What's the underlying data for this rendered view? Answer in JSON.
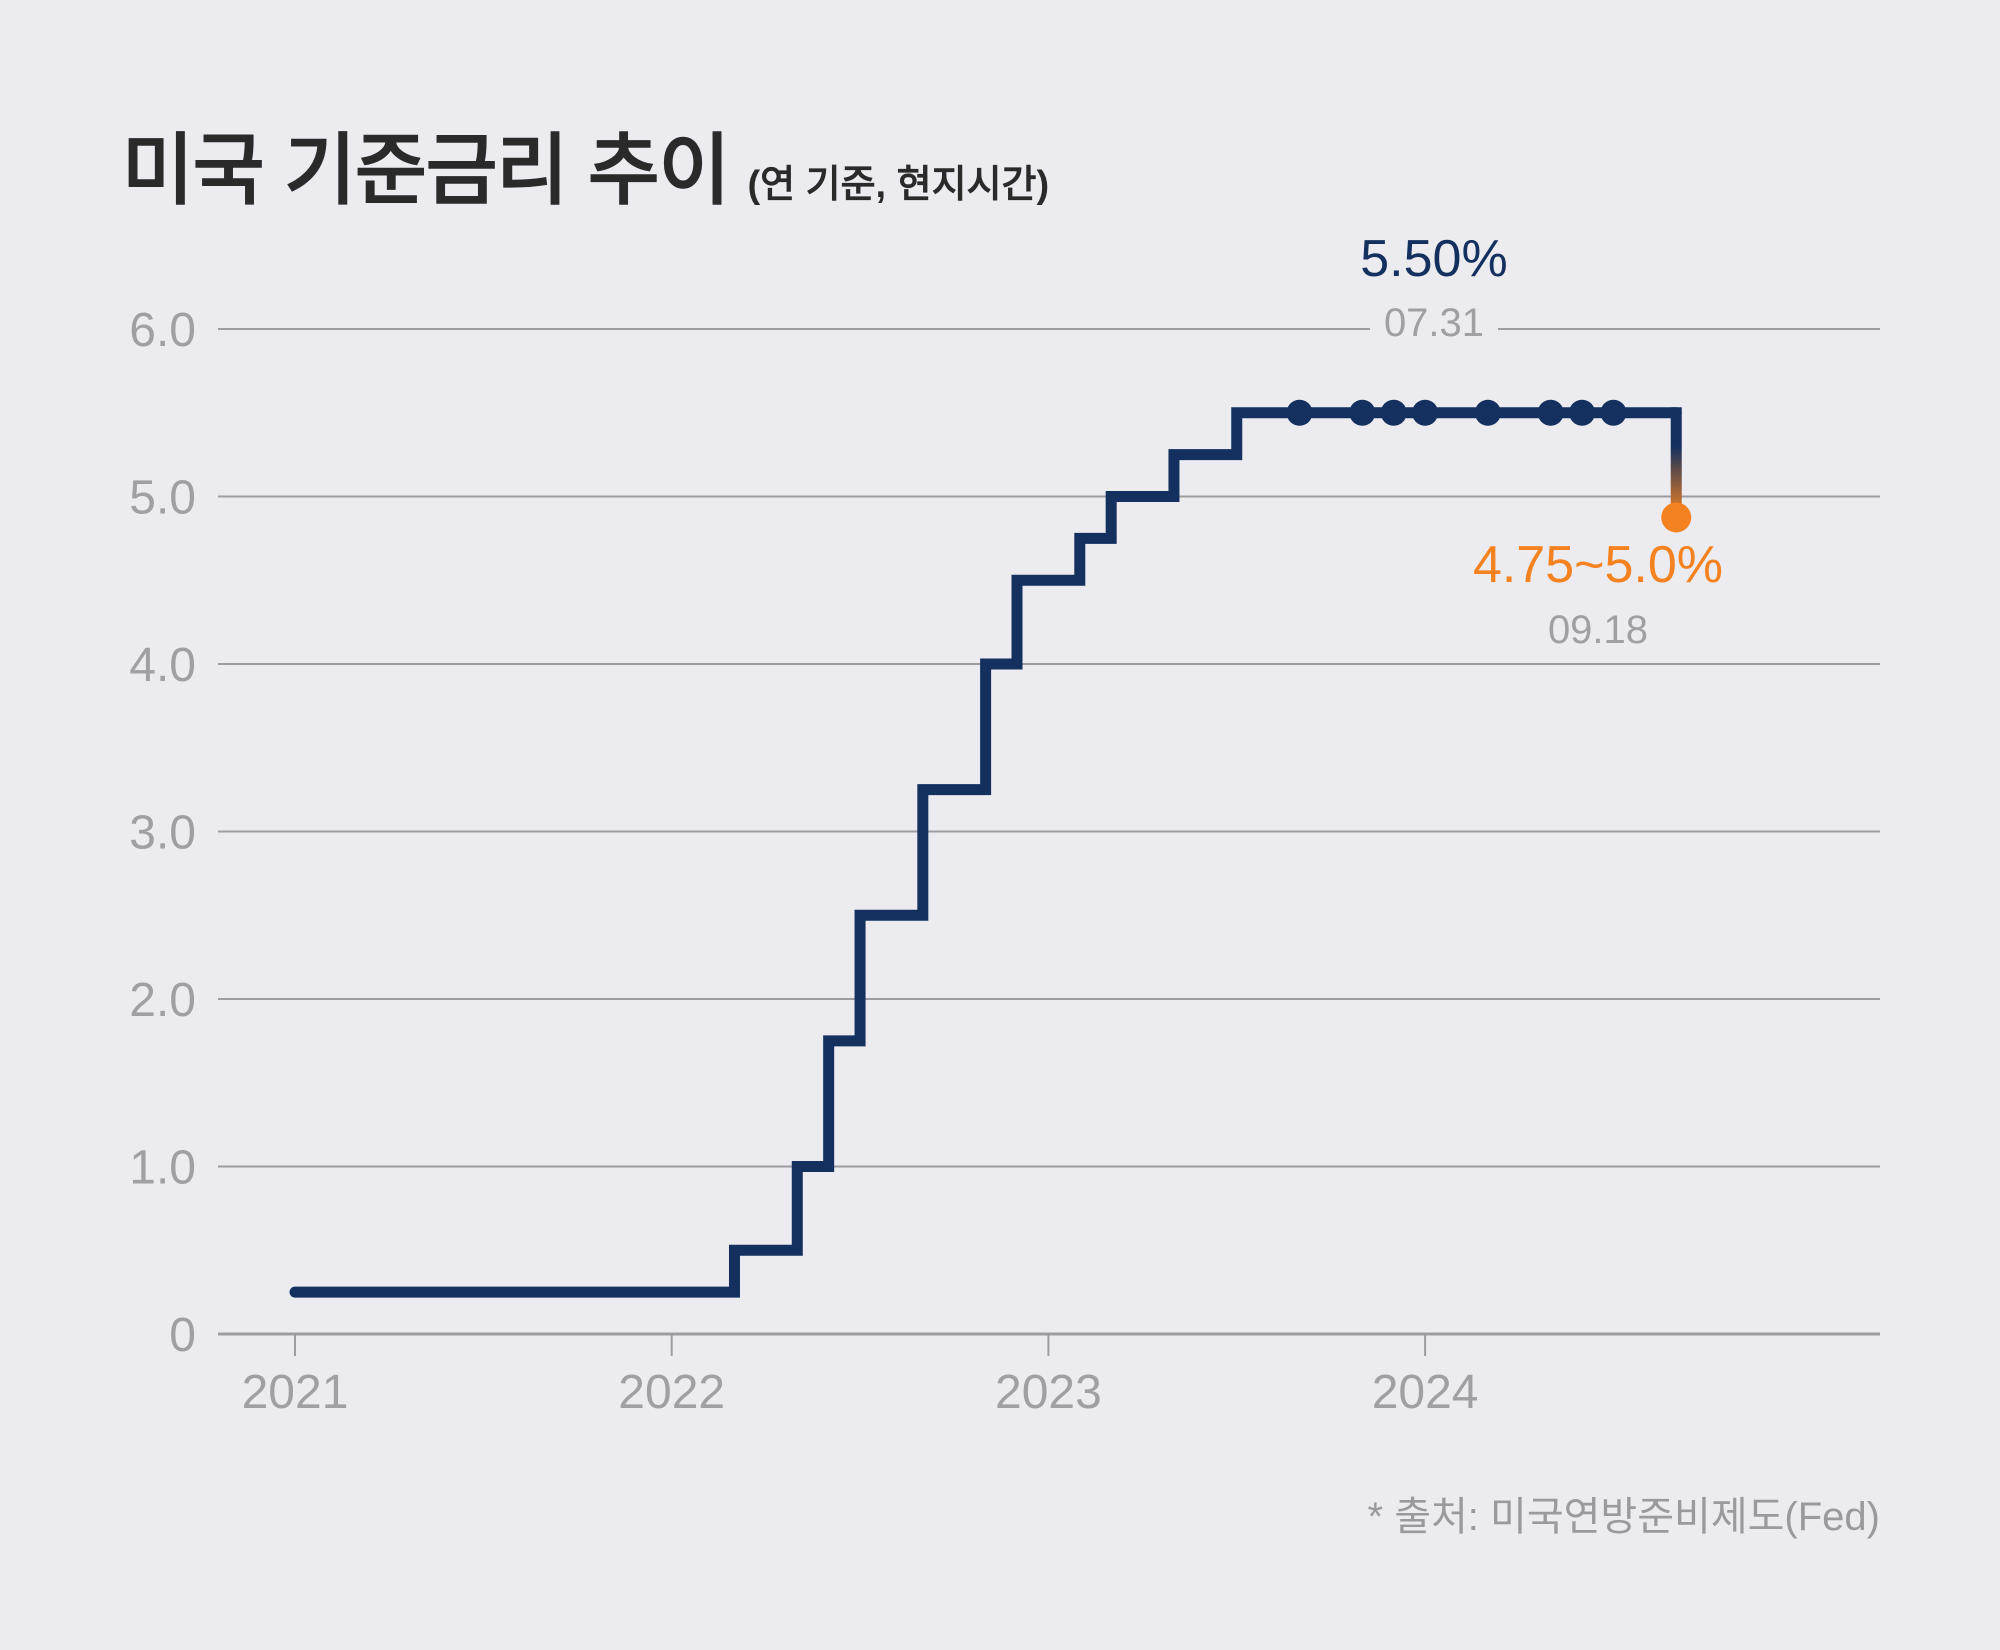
{
  "title": "미국 기준금리 추이",
  "subtitle": "(연 기준, 현지시간)",
  "source": "* 출처: 미국연방준비제도(Fed)",
  "colors": {
    "line": "#13305f",
    "highlight": "#f58220",
    "grid": "#9c9ca2",
    "tick_text": "#a0a0a4",
    "background": "#ecebf0"
  },
  "chart_data": {
    "type": "line",
    "step": true,
    "ylim": [
      0,
      6
    ],
    "y_ticks": [
      "0",
      "1.0",
      "2.0",
      "3.0",
      "4.0",
      "5.0",
      "6.0"
    ],
    "x_ticks": [
      "2021",
      "2022",
      "2023",
      "2024"
    ],
    "series": [
      {
        "x": [
          "2021-01",
          "2022-03",
          "2022-05",
          "2022-06",
          "2022-07",
          "2022-09",
          "2022-11",
          "2022-12",
          "2023-02",
          "2023-03",
          "2023-05",
          "2023-07",
          "2024-09"
        ],
        "values": [
          0.25,
          0.5,
          1.0,
          1.75,
          2.5,
          3.25,
          4.0,
          4.5,
          4.75,
          5.0,
          5.25,
          5.5,
          4.875
        ]
      }
    ],
    "hold_markers_x": [
      "2023-09",
      "2023-11",
      "2023-12",
      "2024-01",
      "2024-03",
      "2024-05",
      "2024-06",
      "2024-07"
    ],
    "annotations": [
      {
        "value_label": "5.50%",
        "date_label": "07.31"
      },
      {
        "value_label": "4.75~5.0%",
        "date_label": "09.18"
      }
    ]
  }
}
